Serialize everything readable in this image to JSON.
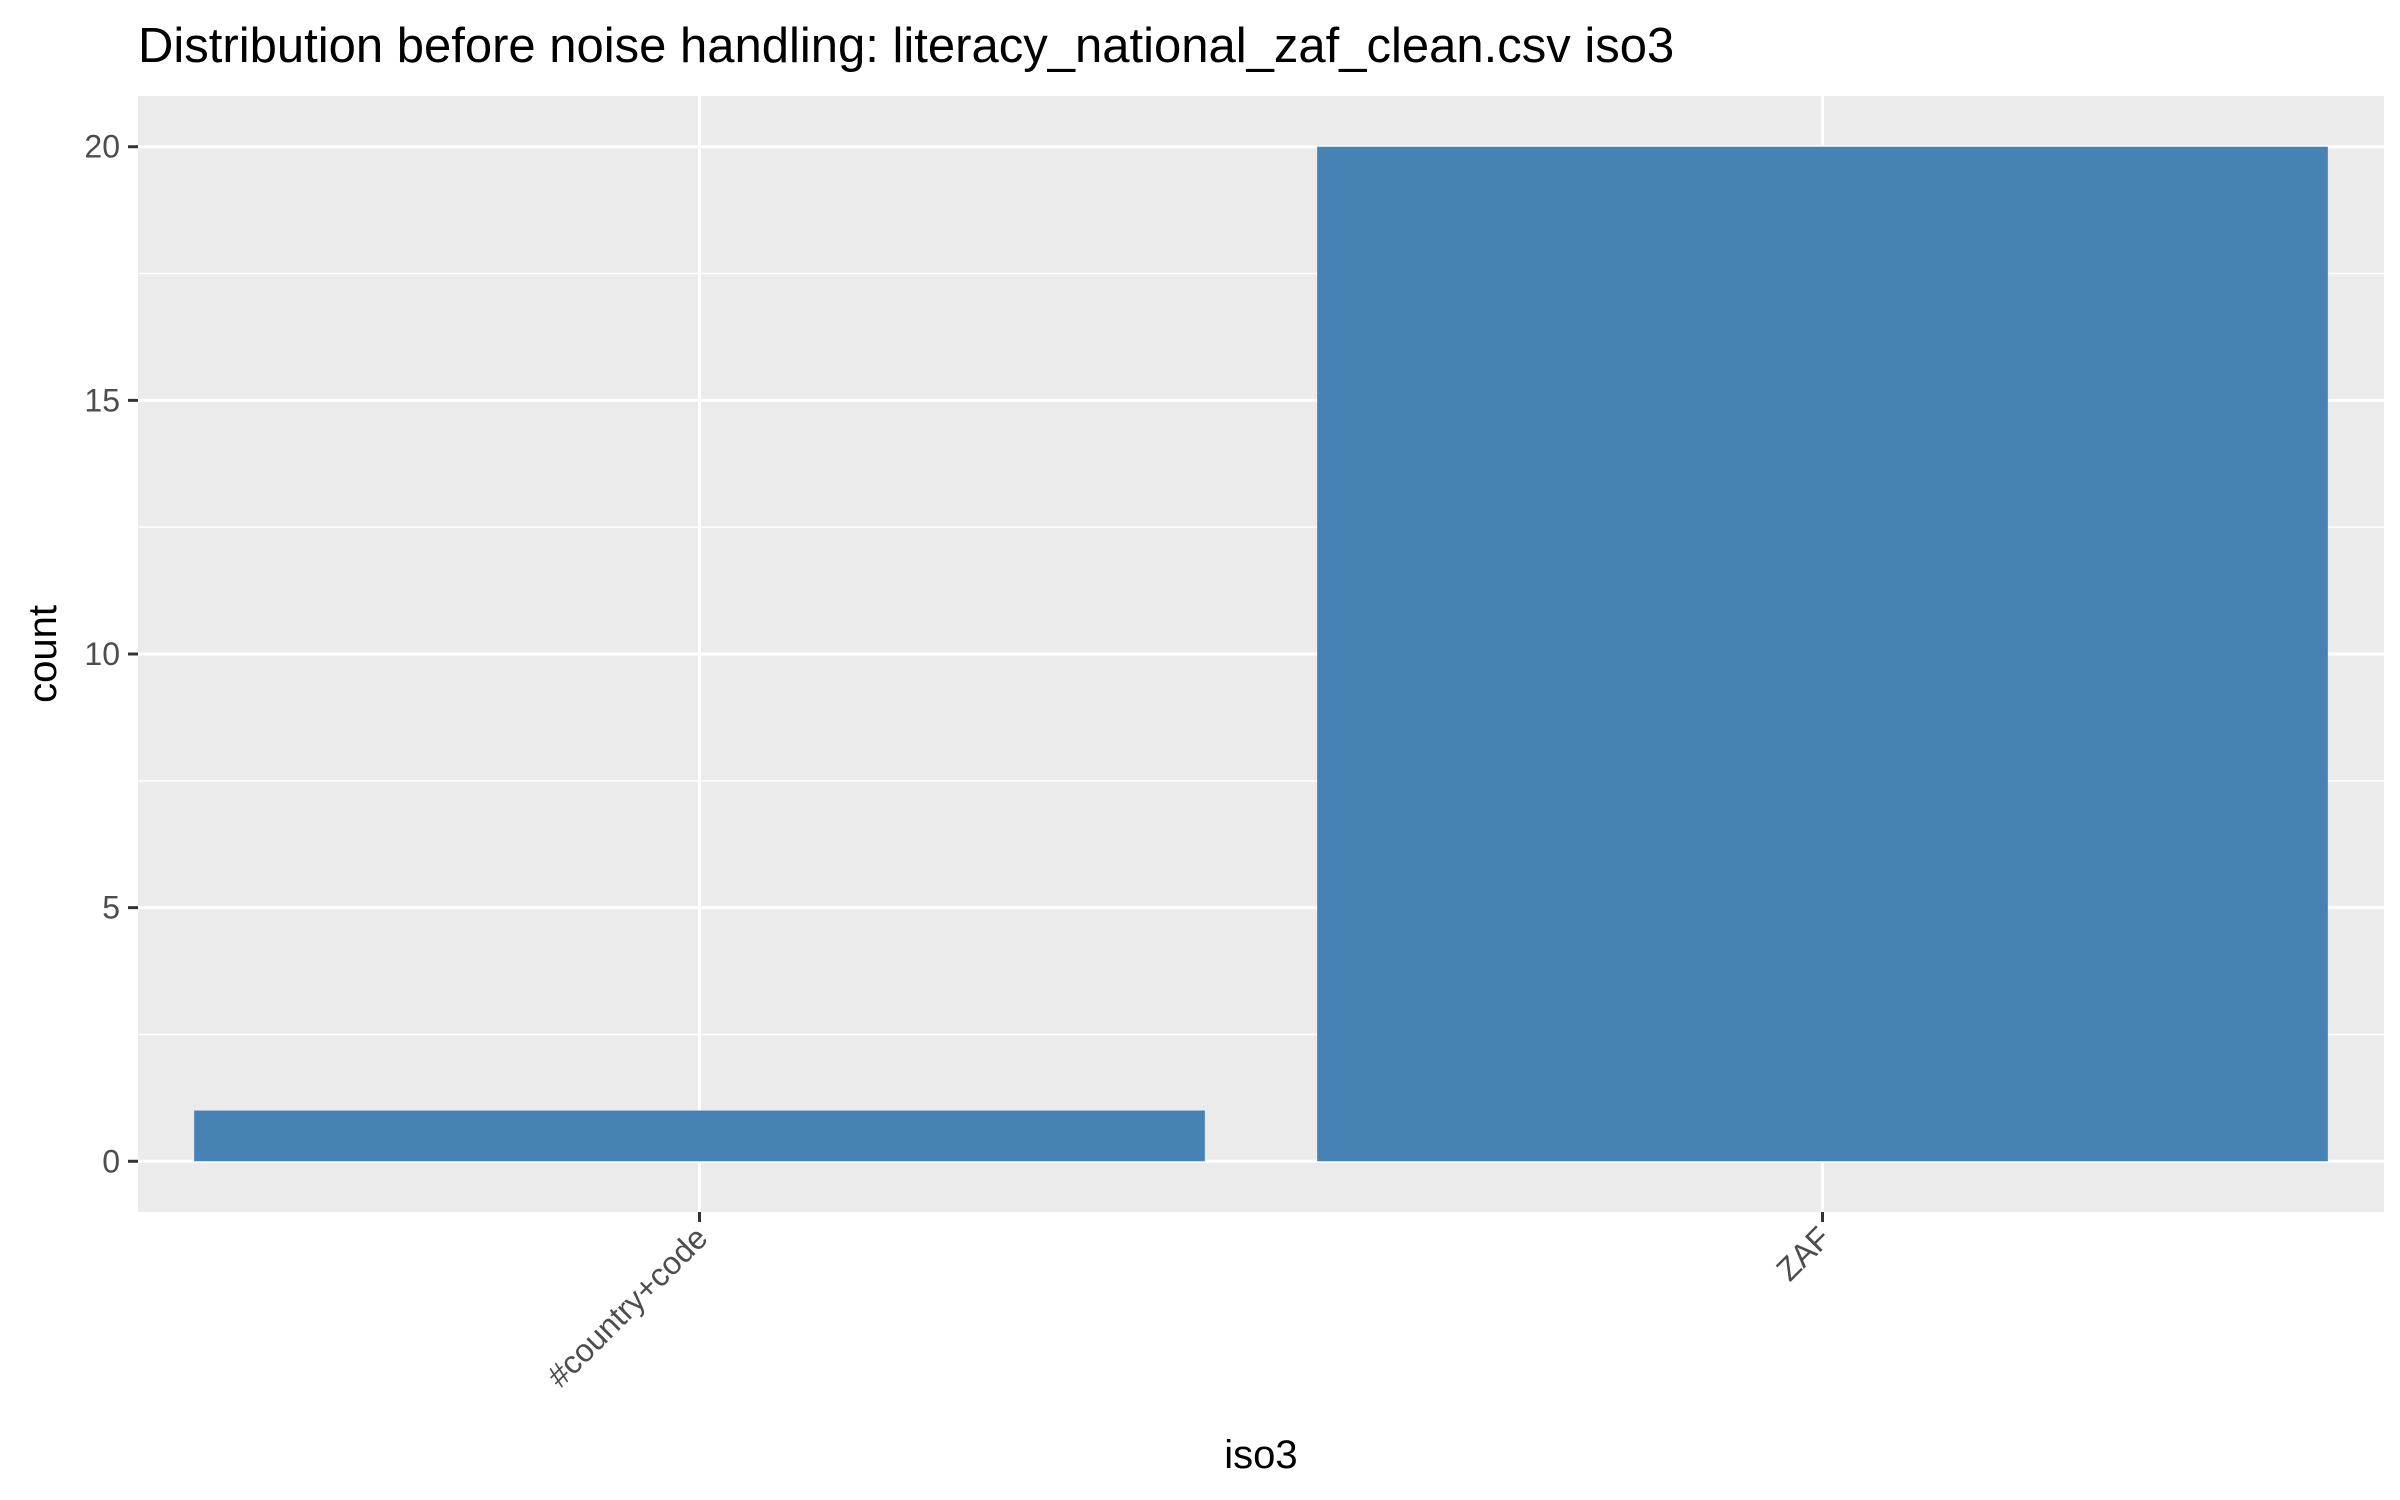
{
  "chart_data": {
    "type": "bar",
    "title": "Distribution before noise handling: literacy_national_zaf_clean.csv iso3",
    "xlabel": "iso3",
    "ylabel": "count",
    "categories": [
      "#country+code",
      "ZAF"
    ],
    "values": [
      1,
      20
    ],
    "ylim": [
      -1,
      21
    ],
    "yticks": [
      0,
      5,
      10,
      15,
      20
    ],
    "grid": true,
    "legend": "none",
    "colors": {
      "bar": "#4682b4",
      "panel": "#ebebeb",
      "grid": "#ffffff",
      "tick_label": "#4d4d4d",
      "tick_mark": "#333333"
    }
  }
}
